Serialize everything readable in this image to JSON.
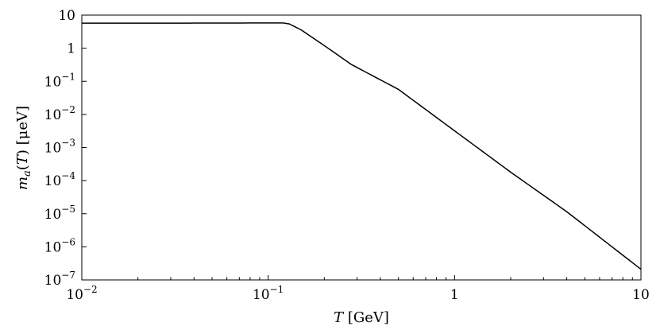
{
  "chart_data": {
    "type": "line",
    "title": "",
    "xscale": "log",
    "yscale": "log",
    "xlim": [
      0.01,
      10
    ],
    "ylim": [
      1e-07,
      10
    ],
    "xlabel": {
      "italic": "T",
      "rest": " [GeV]"
    },
    "ylabel": {
      "italic": "m",
      "sub": "a",
      "paren": "(",
      "italic2": "T",
      "rest": ") [μeV]"
    },
    "x_ticks": [
      {
        "value": 0.01,
        "base": "10",
        "exp": "−2"
      },
      {
        "value": 0.1,
        "base": "10",
        "exp": "−1"
      },
      {
        "value": 1,
        "base": "1",
        "exp": ""
      },
      {
        "value": 10,
        "base": "10",
        "exp": ""
      }
    ],
    "y_ticks": [
      {
        "value": 10,
        "base": "10",
        "exp": ""
      },
      {
        "value": 1,
        "base": "1",
        "exp": ""
      },
      {
        "value": 0.1,
        "base": "10",
        "exp": "−1"
      },
      {
        "value": 0.01,
        "base": "10",
        "exp": "−2"
      },
      {
        "value": 0.001,
        "base": "10",
        "exp": "−3"
      },
      {
        "value": 0.0001,
        "base": "10",
        "exp": "−4"
      },
      {
        "value": 1e-05,
        "base": "10",
        "exp": "−5"
      },
      {
        "value": 1e-06,
        "base": "10",
        "exp": "−6"
      },
      {
        "value": 1e-07,
        "base": "10",
        "exp": "−7"
      }
    ],
    "grid": false,
    "legend": "none",
    "series": [
      {
        "color": "#000000",
        "x": [
          0.01,
          0.03,
          0.06,
          0.1,
          0.12,
          0.13,
          0.15,
          0.2,
          0.28,
          0.5,
          1.0,
          2.0,
          4.0,
          10.0
        ],
        "y": [
          5.7,
          5.72,
          5.75,
          5.8,
          5.8,
          5.4,
          3.6,
          1.2,
          0.32,
          0.057,
          0.0032,
          0.00018,
          1.15e-05,
          2.1e-07
        ]
      }
    ]
  }
}
